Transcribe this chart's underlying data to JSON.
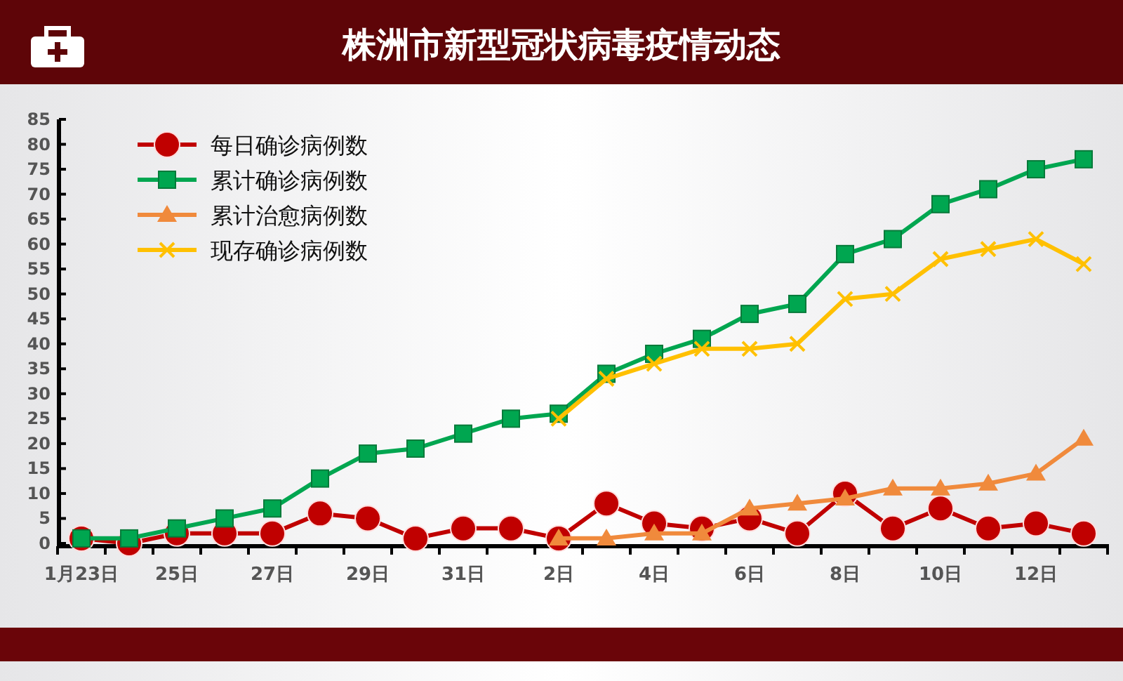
{
  "chart_data": {
    "type": "line",
    "title": "株洲市新型冠状病毒疫情动态",
    "categories": [
      "1月23日",
      null,
      "25日",
      null,
      "27日",
      null,
      "29日",
      null,
      "31日",
      null,
      "2日",
      null,
      "4日",
      null,
      "6日",
      null,
      "8日",
      null,
      "10日",
      null,
      "12日",
      null
    ],
    "series": [
      {
        "name": "每日确诊病例数",
        "color": "#c00000",
        "marker": "circle",
        "values": [
          1,
          0,
          2,
          2,
          2,
          6,
          5,
          1,
          3,
          3,
          1,
          8,
          4,
          3,
          5,
          2,
          10,
          3,
          7,
          3,
          4,
          2
        ]
      },
      {
        "name": "累计确诊病例数",
        "color": "#00a650",
        "marker": "square",
        "values": [
          1,
          1,
          3,
          5,
          7,
          13,
          18,
          19,
          22,
          25,
          26,
          34,
          38,
          41,
          46,
          48,
          58,
          61,
          68,
          71,
          75,
          77
        ]
      },
      {
        "name": "累计治愈病例数",
        "color": "#f08a3c",
        "marker": "triangle",
        "values": [
          null,
          null,
          null,
          null,
          null,
          null,
          null,
          null,
          null,
          null,
          1,
          1,
          2,
          2,
          7,
          8,
          9,
          11,
          11,
          12,
          14,
          21
        ]
      },
      {
        "name": "现存确诊病例数",
        "color": "#ffc000",
        "marker": "cross",
        "values": [
          null,
          null,
          null,
          null,
          null,
          null,
          null,
          null,
          null,
          null,
          25,
          33,
          36,
          39,
          39,
          40,
          49,
          50,
          57,
          59,
          61,
          56
        ]
      }
    ],
    "ylim": [
      0,
      85
    ],
    "yticks": [
      0,
      5,
      10,
      15,
      20,
      25,
      30,
      35,
      40,
      45,
      50,
      55,
      60,
      65,
      70,
      75,
      80,
      85
    ],
    "grid": false,
    "legend": "top left"
  }
}
